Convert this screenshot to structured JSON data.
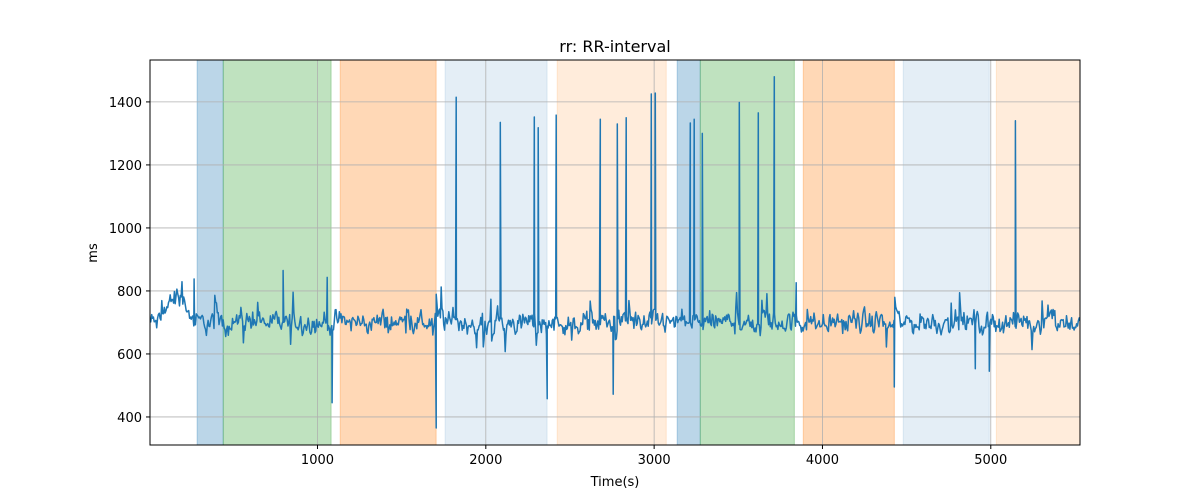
{
  "chart_data": {
    "type": "line",
    "title": "rr: RR-interval",
    "xlabel": "Time(s)",
    "ylabel": "ms",
    "xlim": [
      5,
      5530
    ],
    "ylim": [
      311,
      1533
    ],
    "xticks": [
      1000,
      2000,
      3000,
      4000,
      5000
    ],
    "yticks": [
      400,
      600,
      800,
      1000,
      1200,
      1400
    ],
    "grid": true,
    "line_color": "#1f77b4",
    "baseline": {
      "mean": 700,
      "noise": 35,
      "step": 5,
      "early_bump": {
        "from": 60,
        "to": 260,
        "level": 780
      }
    },
    "spikes": [
      {
        "x": 267,
        "y": 838
      },
      {
        "x": 796,
        "y": 865
      },
      {
        "x": 1058,
        "y": 843
      },
      {
        "x": 1087,
        "y": 445
      },
      {
        "x": 1705,
        "y": 365
      },
      {
        "x": 1824,
        "y": 1415
      },
      {
        "x": 2086,
        "y": 1335
      },
      {
        "x": 2288,
        "y": 1352
      },
      {
        "x": 2311,
        "y": 1318
      },
      {
        "x": 2365,
        "y": 458
      },
      {
        "x": 2418,
        "y": 1358
      },
      {
        "x": 2680,
        "y": 1345
      },
      {
        "x": 2757,
        "y": 472
      },
      {
        "x": 2781,
        "y": 1330
      },
      {
        "x": 2834,
        "y": 1350
      },
      {
        "x": 2983,
        "y": 1425
      },
      {
        "x": 3007,
        "y": 1428
      },
      {
        "x": 3215,
        "y": 1333
      },
      {
        "x": 3238,
        "y": 1345
      },
      {
        "x": 3286,
        "y": 1300
      },
      {
        "x": 3506,
        "y": 1398
      },
      {
        "x": 3619,
        "y": 1365
      },
      {
        "x": 3714,
        "y": 1480
      },
      {
        "x": 3844,
        "y": 826
      },
      {
        "x": 4427,
        "y": 495
      },
      {
        "x": 4908,
        "y": 553
      },
      {
        "x": 4991,
        "y": 545
      },
      {
        "x": 5146,
        "y": 1340
      }
    ],
    "bands": [
      {
        "from": 285,
        "to": 440,
        "color": "#1f77b4",
        "alpha": 0.3
      },
      {
        "from": 440,
        "to": 1081,
        "color": "#2ca02c",
        "alpha": 0.3
      },
      {
        "from": 1135,
        "to": 1705,
        "color": "#ff7f0e",
        "alpha": 0.3
      },
      {
        "from": 1758,
        "to": 2364,
        "color": "#1f77b4",
        "alpha": 0.12
      },
      {
        "from": 2424,
        "to": 3072,
        "color": "#ff7f0e",
        "alpha": 0.15
      },
      {
        "from": 3137,
        "to": 3274,
        "color": "#1f77b4",
        "alpha": 0.3
      },
      {
        "from": 3274,
        "to": 3833,
        "color": "#2ca02c",
        "alpha": 0.3
      },
      {
        "from": 3886,
        "to": 4427,
        "color": "#ff7f0e",
        "alpha": 0.3
      },
      {
        "from": 4480,
        "to": 4991,
        "color": "#1f77b4",
        "alpha": 0.12
      },
      {
        "from": 5033,
        "to": 5530,
        "color": "#ff7f0e",
        "alpha": 0.15
      }
    ]
  }
}
